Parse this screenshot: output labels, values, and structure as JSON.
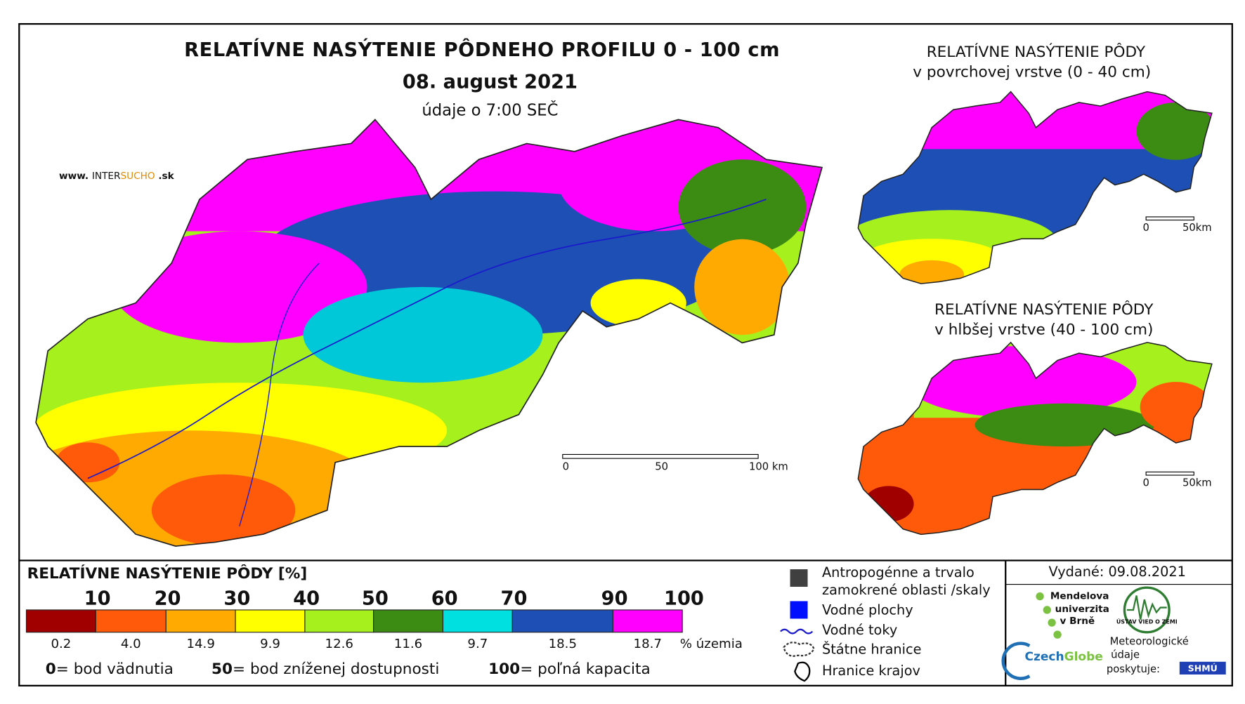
{
  "title": "RELATÍVNE NASÝTENIE PÔDNEHO PROFILU 0 - 100 cm",
  "date": "08. august 2021",
  "time_note": "údaje o 7:00 SEČ",
  "website": {
    "prefix": "www.",
    "brand_a": "INTER",
    "brand_b": "SUCHO",
    "suffix": ".sk"
  },
  "main_scale": [
    "0",
    "50",
    "100 km"
  ],
  "inset_top": {
    "title": "RELATÍVNE NASÝTENIE PÔDY",
    "subtitle": "v povrchovej vrstve (0 - 40 cm)",
    "scale": [
      "0",
      "50km"
    ]
  },
  "inset_bottom": {
    "title": "RELATÍVNE NASÝTENIE PÔDY",
    "subtitle": "v hlbšej vrstve (40 - 100 cm)",
    "scale": [
      "0",
      "50km"
    ]
  },
  "legend": {
    "title": "RELATÍVNE NASÝTENIE PÔDY [%]",
    "boundaries": [
      "10",
      "20",
      "30",
      "40",
      "50",
      "60",
      "70",
      "90",
      "100"
    ],
    "classes": [
      {
        "color": "#a00000",
        "share": "0.2"
      },
      {
        "color": "#ff5a0a",
        "share": "4.0"
      },
      {
        "color": "#ffaa00",
        "share": "14.9"
      },
      {
        "color": "#ffff00",
        "share": "9.9"
      },
      {
        "color": "#a6f01e",
        "share": "12.6"
      },
      {
        "color": "#3c8c14",
        "share": "11.6"
      },
      {
        "color": "#00e0e0",
        "share": "9.7"
      },
      {
        "color": "#1e4fb4",
        "share": "18.5"
      },
      {
        "color": "#ff00ff",
        "share": "18.7"
      }
    ],
    "share_unit": "% územia",
    "notes": [
      {
        "value": "0",
        "text": "= bod vädnutia"
      },
      {
        "value": "50",
        "text": "= bod zníženej dostupnosti"
      },
      {
        "value": "100",
        "text": "= poľná kapacita"
      }
    ]
  },
  "map_legend": {
    "anthropogenic": [
      "Antropogénne a trvalo",
      "zamokrené oblasti /skaly"
    ],
    "water_bodies": "Vodné plochy",
    "rivers": "Vodné toky",
    "border": "Štátne hranice",
    "regions": "Hranice krajov"
  },
  "issued": "Vydané: 09.08.2021",
  "providers": {
    "mendel": [
      "Mendelova",
      "univerzita",
      "v Brně"
    ],
    "czechglobe_a": "Czech",
    "czechglobe_b": "Globe",
    "uvz": "ÚSTAV VIED O ZEMI",
    "shmu_note": [
      "Meteorologické",
      "údaje",
      "poskytuje:"
    ],
    "shmu": "SHMÚ"
  }
}
